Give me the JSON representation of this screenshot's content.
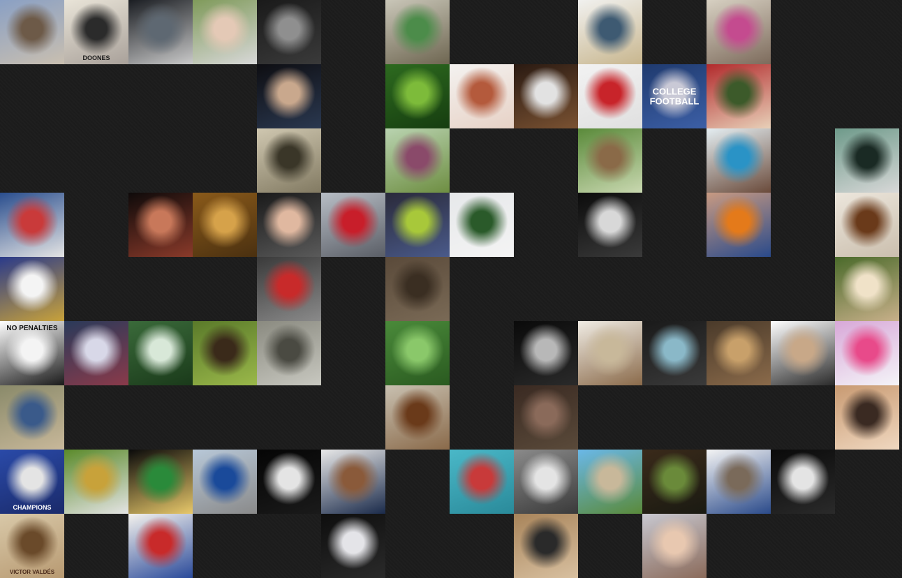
{
  "page": {
    "background": "#1c1c1c"
  },
  "tiles": [
    {
      "name": "photo-tile-winter-trees",
      "col": 0,
      "row": 0,
      "colors": [
        "#8aa0c4",
        "#6d5a48",
        "#c9bfb0"
      ]
    },
    {
      "name": "photo-tile-ad-poster",
      "col": 1,
      "row": 0,
      "colors": [
        "#e9e4d8",
        "#2b2b2b",
        "#a9a19a"
      ],
      "text": "DOONES",
      "textColor": "#1a1a1a",
      "textSize": 9,
      "textPos": "bottom"
    },
    {
      "name": "photo-tile-masked-face",
      "col": 2,
      "row": 0,
      "colors": [
        "#1a1d22",
        "#5e6872",
        "#c9c9c9"
      ]
    },
    {
      "name": "photo-tile-man-hat",
      "col": 3,
      "row": 0,
      "colors": [
        "#7f9a5a",
        "#e4c9b6",
        "#d8d8d8"
      ]
    },
    {
      "name": "photo-tile-bw-closeup",
      "col": 4,
      "row": 0,
      "colors": [
        "#1a1a1a",
        "#8f8f8f",
        "#3a3a3a"
      ]
    },
    {
      "name": "photo-tile-road-signs",
      "col": 6,
      "row": 0,
      "colors": [
        "#c9c6b8",
        "#4c8c4a",
        "#6e6651"
      ]
    },
    {
      "name": "photo-tile-books-stack",
      "col": 9,
      "row": 0,
      "colors": [
        "#f1f1ef",
        "#3e5a72",
        "#c8b68e"
      ]
    },
    {
      "name": "photo-tile-girl-pink-dress",
      "col": 11,
      "row": 0,
      "colors": [
        "#d7d0c2",
        "#c44b8f",
        "#7d6b5c"
      ]
    },
    {
      "name": "photo-tile-woman-podium",
      "col": 4,
      "row": 1,
      "colors": [
        "#0e0e12",
        "#c9a88d",
        "#2a3850"
      ]
    },
    {
      "name": "photo-tile-green-leaves",
      "col": 6,
      "row": 1,
      "colors": [
        "#2d6a1f",
        "#7dbb3a",
        "#163d10"
      ]
    },
    {
      "name": "photo-tile-magazine-cover",
      "col": 7,
      "row": 1,
      "colors": [
        "#f4f2f0",
        "#b45a3c",
        "#e7d2c6"
      ]
    },
    {
      "name": "photo-tile-wedding-figurine",
      "col": 8,
      "row": 1,
      "colors": [
        "#2a1a12",
        "#e2e2e2",
        "#7a5232"
      ]
    },
    {
      "name": "photo-tile-red-book",
      "col": 9,
      "row": 1,
      "colors": [
        "#f2f2f2",
        "#c8242a",
        "#e0e0e0"
      ]
    },
    {
      "name": "photo-tile-college-football",
      "col": 10,
      "row": 1,
      "colors": [
        "#1f3a6e",
        "#c9c9d6",
        "#3c5fa6"
      ],
      "text": "COLLEGE FOOTBALL",
      "textColor": "#ffffff",
      "textSize": 13,
      "textPos": "middle"
    },
    {
      "name": "photo-tile-woman-red-wall",
      "col": 11,
      "row": 1,
      "colors": [
        "#b22a2c",
        "#3c5a2a",
        "#e8d0b8"
      ]
    },
    {
      "name": "photo-tile-arena-interior",
      "col": 4,
      "row": 2,
      "colors": [
        "#cfc7b0",
        "#3a3628",
        "#827a62"
      ]
    },
    {
      "name": "photo-tile-flower",
      "col": 6,
      "row": 2,
      "colors": [
        "#b9d3b0",
        "#8a4a6a",
        "#6e8e42"
      ]
    },
    {
      "name": "photo-tile-wooden-bridge",
      "col": 9,
      "row": 2,
      "colors": [
        "#5a8a3a",
        "#8a6a48",
        "#c9d8b0"
      ]
    },
    {
      "name": "photo-tile-girls-bedroom",
      "col": 11,
      "row": 2,
      "colors": [
        "#e4eef2",
        "#2a93c6",
        "#6a4a3a"
      ]
    },
    {
      "name": "photo-tile-sleeping-man",
      "col": 13,
      "row": 2,
      "colors": [
        "#6e9a8a",
        "#1a2a24",
        "#d8d8d8"
      ]
    },
    {
      "name": "photo-tile-sign-palm",
      "col": 0,
      "row": 3,
      "colors": [
        "#2a4e8e",
        "#c93a3a",
        "#e4e4e4"
      ]
    },
    {
      "name": "photo-tile-photographer",
      "col": 2,
      "row": 3,
      "colors": [
        "#0e0a0a",
        "#c8785a",
        "#8a3a2a"
      ]
    },
    {
      "name": "photo-tile-autumn-forest",
      "col": 3,
      "row": 3,
      "colors": [
        "#8a5a1a",
        "#d6a24a",
        "#4a3010"
      ]
    },
    {
      "name": "photo-tile-group-party",
      "col": 4,
      "row": 3,
      "colors": [
        "#1a1a1a",
        "#e0b8a0",
        "#5a5a5a"
      ]
    },
    {
      "name": "photo-tile-red-car",
      "col": 5,
      "row": 3,
      "colors": [
        "#b8bec6",
        "#c81e2a",
        "#5a5e66"
      ]
    },
    {
      "name": "photo-tile-man-green-pipe",
      "col": 6,
      "row": 3,
      "colors": [
        "#2a2a3a",
        "#a8c83a",
        "#4a5a8a"
      ]
    },
    {
      "name": "photo-tile-white-car",
      "col": 7,
      "row": 3,
      "colors": [
        "#e6e8ea",
        "#2a5a2a",
        "#f4f4f4"
      ]
    },
    {
      "name": "photo-tile-sparkles",
      "col": 9,
      "row": 3,
      "colors": [
        "#0c0c0c",
        "#d8d8d8",
        "#3a3a3a"
      ]
    },
    {
      "name": "photo-tile-feet-pumpkins",
      "col": 11,
      "row": 3,
      "colors": [
        "#c89a82",
        "#e47a1a",
        "#2a4a8a"
      ]
    },
    {
      "name": "photo-tile-wall-hooks",
      "col": 13,
      "row": 3,
      "colors": [
        "#ece6dc",
        "#6a3a1a",
        "#cbbfae"
      ]
    },
    {
      "name": "photo-tile-speech-bubble",
      "col": 0,
      "row": 4,
      "colors": [
        "#2a3a8a",
        "#f4f4f4",
        "#c8a23a"
      ]
    },
    {
      "name": "photo-tile-motorcycle-race",
      "col": 4,
      "row": 4,
      "colors": [
        "#3a3a3a",
        "#c82a2a",
        "#8a8a8a"
      ]
    },
    {
      "name": "photo-tile-dirt-ground",
      "col": 6,
      "row": 4,
      "colors": [
        "#5a4a3a",
        "#3a2e22",
        "#7a6a56"
      ]
    },
    {
      "name": "photo-tile-golden-puppy",
      "col": 13,
      "row": 4,
      "colors": [
        "#4a6a2a",
        "#f0e2c8",
        "#c8b08a"
      ]
    },
    {
      "name": "photo-tile-no-penalties",
      "col": 0,
      "row": 5,
      "colors": [
        "#ffffff",
        "#f4f4f4",
        "#1a1a1a"
      ],
      "text": "NO PENALTIES",
      "textColor": "#111111",
      "textSize": 10,
      "textPos": "top"
    },
    {
      "name": "photo-tile-dancer-light",
      "col": 1,
      "row": 5,
      "colors": [
        "#2a3a5a",
        "#d8d8e8",
        "#8a3a4a"
      ]
    },
    {
      "name": "photo-tile-palm-fronds",
      "col": 2,
      "row": 5,
      "colors": [
        "#3a6a3a",
        "#d8e8d8",
        "#1a3a1a"
      ]
    },
    {
      "name": "photo-tile-branches",
      "col": 3,
      "row": 5,
      "colors": [
        "#5a7a2a",
        "#3a2a1a",
        "#9ab84a"
      ]
    },
    {
      "name": "photo-tile-soldiers",
      "col": 4,
      "row": 5,
      "colors": [
        "#8a8a80",
        "#4a4a42",
        "#c8c8c0"
      ]
    },
    {
      "name": "photo-tile-leafy-plant",
      "col": 6,
      "row": 5,
      "colors": [
        "#4a8a3a",
        "#8ac86a",
        "#2a5a20"
      ]
    },
    {
      "name": "photo-tile-window-dark",
      "col": 8,
      "row": 5,
      "colors": [
        "#0a0a0a",
        "#b8b8b8",
        "#2a2a2a"
      ]
    },
    {
      "name": "photo-tile-living-room",
      "col": 9,
      "row": 5,
      "colors": [
        "#f0ece4",
        "#c8b89a",
        "#8a6a4a"
      ]
    },
    {
      "name": "photo-tile-car-interior",
      "col": 10,
      "row": 5,
      "colors": [
        "#1a1a1a",
        "#8ab8c8",
        "#3a3a3a"
      ]
    },
    {
      "name": "photo-tile-church-interior",
      "col": 11,
      "row": 5,
      "colors": [
        "#4a3a2a",
        "#c8a06a",
        "#8a6a4a"
      ]
    },
    {
      "name": "photo-tile-dance-lift",
      "col": 12,
      "row": 5,
      "colors": [
        "#ffffff",
        "#c8a888",
        "#2a2a2a"
      ]
    },
    {
      "name": "photo-tile-pink-fantasy",
      "col": 13,
      "row": 5,
      "colors": [
        "#d8a8d8",
        "#e84a8a",
        "#f4f4f8"
      ]
    },
    {
      "name": "photo-tile-team-collage",
      "col": 0,
      "row": 6,
      "colors": [
        "#8a8a6a",
        "#3a5a8a",
        "#c8b89a"
      ]
    },
    {
      "name": "photo-tile-bottle",
      "col": 6,
      "row": 6,
      "colors": [
        "#c8c0b0",
        "#6a3a1a",
        "#8a6a4a"
      ]
    },
    {
      "name": "photo-tile-old-machine",
      "col": 8,
      "row": 6,
      "colors": [
        "#3a2a22",
        "#8a6a5a",
        "#5a4a3a"
      ]
    },
    {
      "name": "photo-tile-woman-towel",
      "col": 13,
      "row": 6,
      "colors": [
        "#c89a72",
        "#3a2a22",
        "#f0d8c0"
      ]
    },
    {
      "name": "photo-tile-champions",
      "col": 0,
      "row": 7,
      "colors": [
        "#2a4aa8",
        "#e4e4e4",
        "#1a2a6a"
      ],
      "text": "CHAMPIONS",
      "textColor": "#ffffff",
      "textSize": 9,
      "textPos": "bottom"
    },
    {
      "name": "photo-tile-garden-kid",
      "col": 1,
      "row": 7,
      "colors": [
        "#5a8a2a",
        "#c8a23a",
        "#e4e4e4"
      ]
    },
    {
      "name": "photo-tile-billiards",
      "col": 2,
      "row": 7,
      "colors": [
        "#0a0a0a",
        "#2a8a3a",
        "#e8c86a"
      ]
    },
    {
      "name": "photo-tile-blue-car",
      "col": 3,
      "row": 7,
      "colors": [
        "#b8c8d8",
        "#1a4a9a",
        "#8a8a8a"
      ]
    },
    {
      "name": "photo-tile-white-finger",
      "col": 4,
      "row": 7,
      "colors": [
        "#050505",
        "#e4e4e4",
        "#1a1a1a"
      ]
    },
    {
      "name": "photo-tile-man-portrait",
      "col": 5,
      "row": 7,
      "colors": [
        "#e8e8e8",
        "#8a5a3a",
        "#1a2a4a"
      ]
    },
    {
      "name": "photo-tile-swimmers",
      "col": 7,
      "row": 7,
      "colors": [
        "#4ab8c8",
        "#c83a3a",
        "#2a8a9a"
      ]
    },
    {
      "name": "photo-tile-street-van",
      "col": 8,
      "row": 7,
      "colors": [
        "#8a8a8a",
        "#e4e4e4",
        "#3a3a3a"
      ]
    },
    {
      "name": "photo-tile-sidewalk",
      "col": 9,
      "row": 7,
      "colors": [
        "#6ab8e8",
        "#c8b89a",
        "#5a8a3a"
      ]
    },
    {
      "name": "photo-tile-park-trees",
      "col": 10,
      "row": 7,
      "colors": [
        "#3a2a1a",
        "#6a8a3a",
        "#1a1a12"
      ]
    },
    {
      "name": "photo-tile-cat-toy",
      "col": 11,
      "row": 7,
      "colors": [
        "#f4f4f4",
        "#7a6a5a",
        "#2a4a8a"
      ]
    },
    {
      "name": "photo-tile-white-sculpture",
      "col": 12,
      "row": 7,
      "colors": [
        "#0a0a0a",
        "#e4e4e4",
        "#2a2a2a"
      ]
    },
    {
      "name": "photo-tile-caricature",
      "col": 0,
      "row": 8,
      "colors": [
        "#d8c8a8",
        "#6a4a2a",
        "#b89a72"
      ],
      "text": "VICTOR VALDÉS",
      "textColor": "#4a2a1a",
      "textSize": 8,
      "textPos": "bottom"
    },
    {
      "name": "photo-tile-cartoon-plumber",
      "col": 2,
      "row": 8,
      "colors": [
        "#f4f2ee",
        "#c82a2a",
        "#2a4a9a"
      ]
    },
    {
      "name": "photo-tile-card-hand",
      "col": 5,
      "row": 8,
      "colors": [
        "#0e0e0e",
        "#e4e4e8",
        "#2a2a2a"
      ]
    },
    {
      "name": "photo-tile-cardboard-sign",
      "col": 8,
      "row": 8,
      "colors": [
        "#a8845a",
        "#2a2a2a",
        "#d8c0a0"
      ]
    },
    {
      "name": "photo-tile-woman-sleeping",
      "col": 10,
      "row": 8,
      "colors": [
        "#c8c8d0",
        "#e8c8b0",
        "#8a6a5a"
      ]
    }
  ]
}
